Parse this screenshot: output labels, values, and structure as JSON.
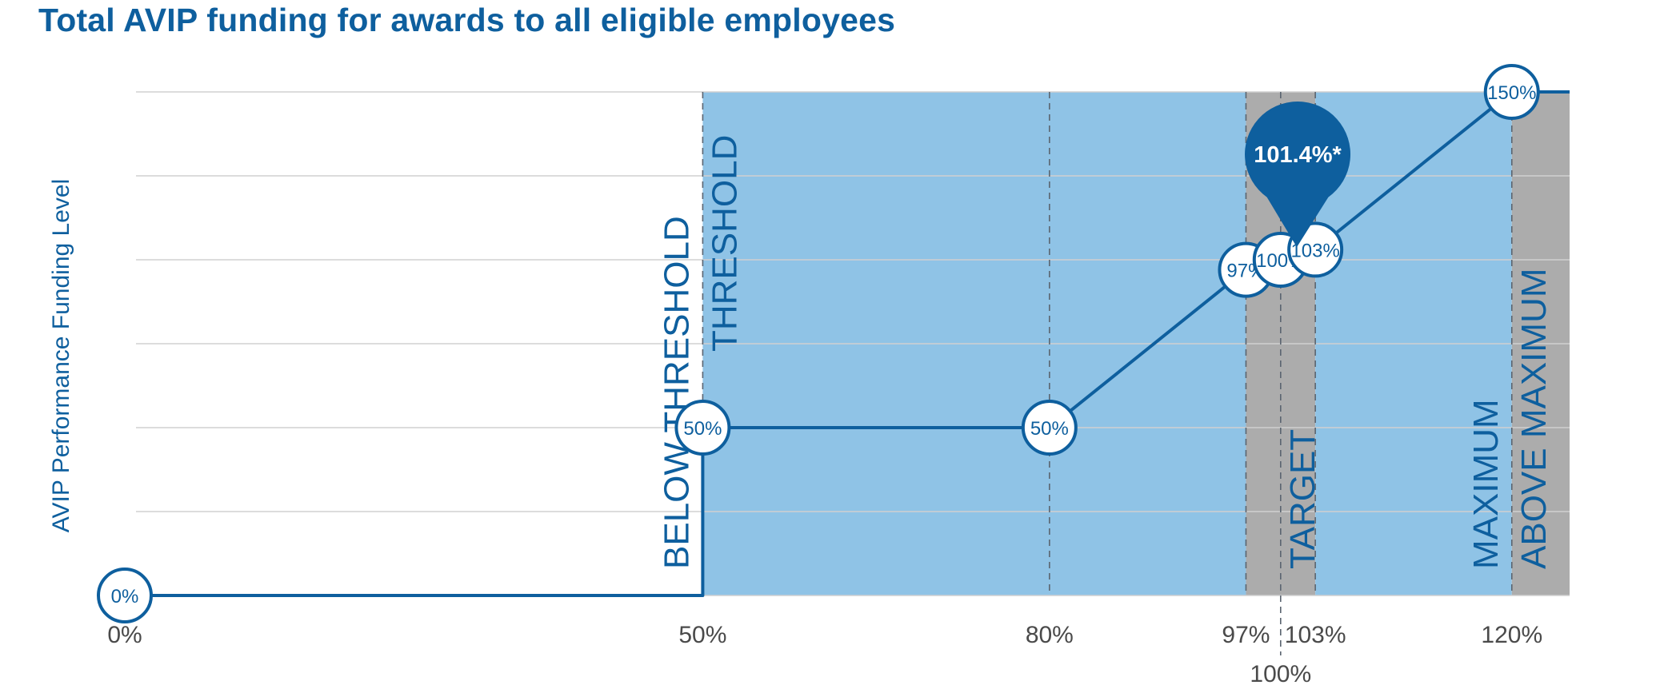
{
  "title": "Total AVIP funding for awards to all eligible employees",
  "colors": {
    "title": "#0e5f9e",
    "line": "#0e5f9e",
    "band_blue": "#8fc3e6",
    "band_gray": "#acacac",
    "gridline": "#d0d0d0",
    "axis_text": "#4a4a4a"
  },
  "chart_data": {
    "type": "line",
    "title": "Total AVIP funding for awards to all eligible employees",
    "xlabel": "",
    "ylabel": "AVIP Performance Funding Level",
    "xlim": [
      0,
      125
    ],
    "ylim": [
      0,
      150
    ],
    "grid": true,
    "y_grid_step": 25,
    "x_ticks": [
      {
        "value": 0,
        "label": "0%"
      },
      {
        "value": 50,
        "label": "50%"
      },
      {
        "value": 80,
        "label": "80%"
      },
      {
        "value": 97,
        "label": "97%"
      },
      {
        "value": 100,
        "label": "100%"
      },
      {
        "value": 103,
        "label": "103%"
      },
      {
        "value": 120,
        "label": "120%"
      }
    ],
    "series": [
      {
        "name": "Funding level",
        "points": [
          {
            "x": 0,
            "y": 0
          },
          {
            "x": 50,
            "y": 0
          },
          {
            "x": 50,
            "y": 50
          },
          {
            "x": 80,
            "y": 50
          },
          {
            "x": 97,
            "y": 97
          },
          {
            "x": 100,
            "y": 100
          },
          {
            "x": 103,
            "y": 103
          },
          {
            "x": 120,
            "y": 150
          },
          {
            "x": 125,
            "y": 150
          }
        ]
      }
    ],
    "markers": [
      {
        "x": 0,
        "y": 0,
        "label": "0%"
      },
      {
        "x": 50,
        "y": 50,
        "label": "50%"
      },
      {
        "x": 80,
        "y": 50,
        "label": "50%"
      },
      {
        "x": 97,
        "y": 97,
        "label": "97%"
      },
      {
        "x": 100,
        "y": 100,
        "label": "100%"
      },
      {
        "x": 103,
        "y": 103,
        "label": "103%"
      },
      {
        "x": 120,
        "y": 150,
        "label": "150%"
      }
    ],
    "bands": [
      {
        "from": 50,
        "to": 97,
        "color": "#8fc3e6"
      },
      {
        "from": 97,
        "to": 103,
        "color": "#acacac"
      },
      {
        "from": 103,
        "to": 120,
        "color": "#8fc3e6"
      },
      {
        "from": 120,
        "to": 125,
        "color": "#acacac"
      }
    ],
    "reference_lines": [
      50,
      80,
      97,
      100,
      103,
      120
    ],
    "zone_labels": [
      {
        "text": "BELOW THRESHOLD",
        "x": 50,
        "side": "left"
      },
      {
        "text": "THRESHOLD",
        "x": 50,
        "side": "right"
      },
      {
        "text": "TARGET",
        "x": 100,
        "side": "center"
      },
      {
        "text": "MAXIMUM",
        "x": 120,
        "side": "left"
      },
      {
        "text": "ABOVE MAXIMUM",
        "x": 120,
        "side": "right"
      }
    ],
    "callout": {
      "label": "101.4%*",
      "x": 101.4,
      "y": 101.4
    }
  }
}
